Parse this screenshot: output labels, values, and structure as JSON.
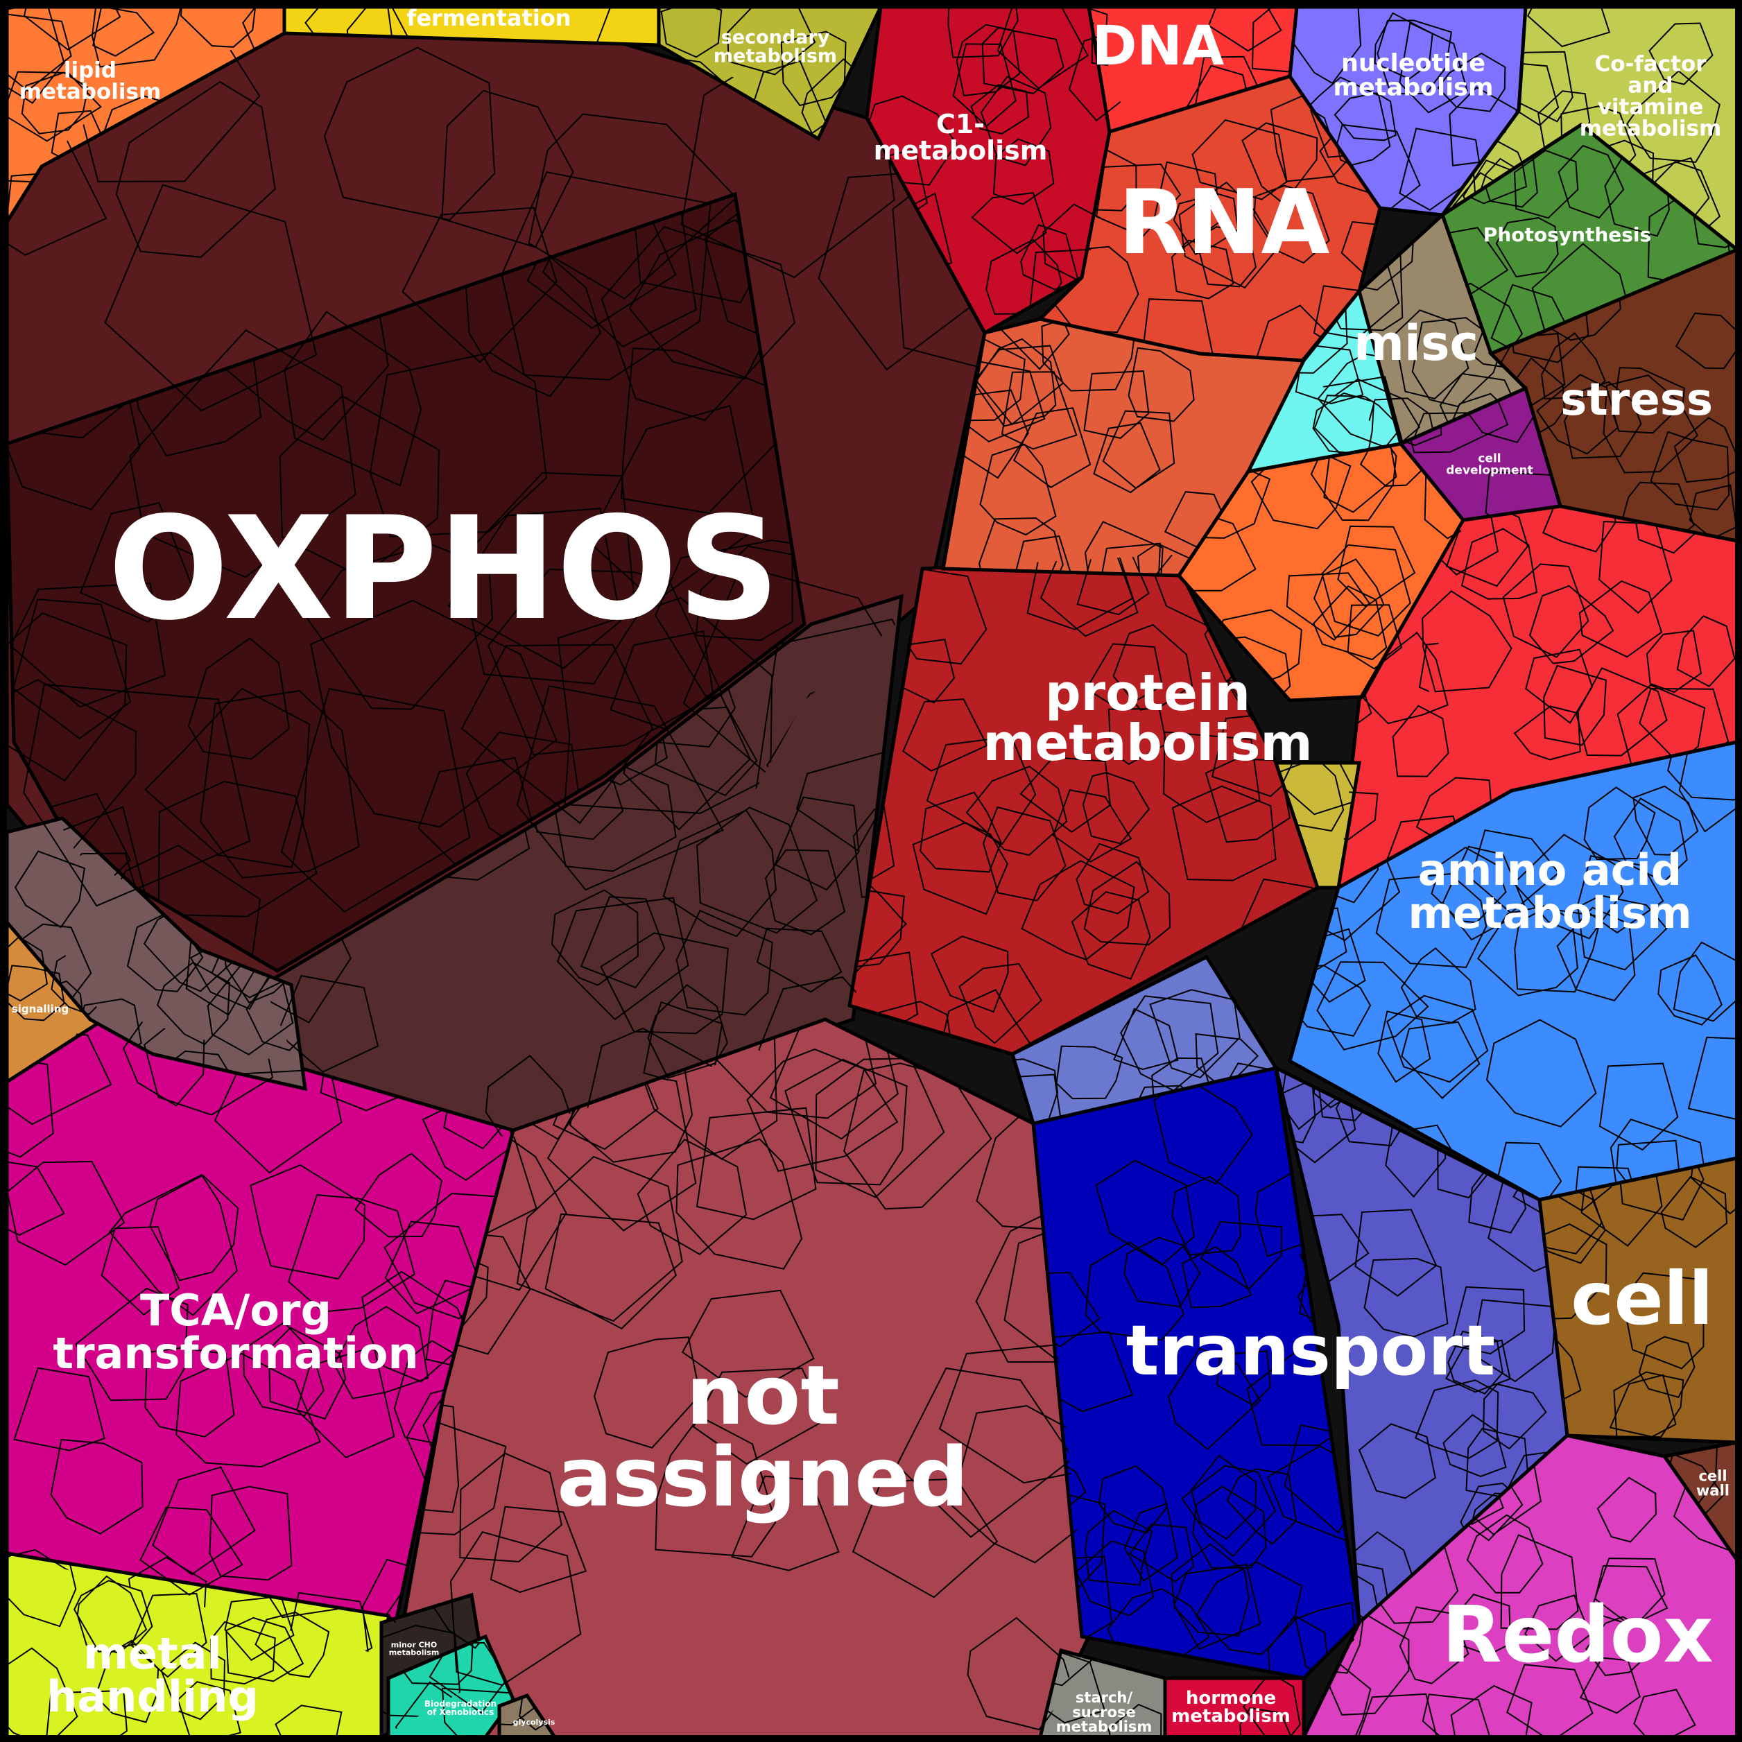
{
  "chart_data": {
    "type": "voronoi-treemap",
    "title": "",
    "categories": [
      {
        "id": "oxphos",
        "label": [
          "OXPHOS"
        ],
        "color": "#3f0e10",
        "size": "huge"
      },
      {
        "id": "oxphos-outer",
        "label": [],
        "color": "#5a1b1f",
        "size": "none"
      },
      {
        "id": "oxphos-lower",
        "label": [],
        "color": "#542c2e",
        "size": "none"
      },
      {
        "id": "not-assigned",
        "label": [
          "not",
          "assigned"
        ],
        "color": "#a84350",
        "size": "xl"
      },
      {
        "id": "transport",
        "label": [
          "transport"
        ],
        "color": "#0000b8",
        "size": "xl"
      },
      {
        "id": "transport-2",
        "label": [],
        "color": "#5858c8",
        "size": "none"
      },
      {
        "id": "protein-metabolism",
        "label": [
          "protein",
          "metabolism"
        ],
        "color": "#b81f22",
        "size": "l"
      },
      {
        "id": "amino-acid-metabolism",
        "label": [
          "amino acid",
          "metabolism"
        ],
        "color": "#3d8cff",
        "size": "l"
      },
      {
        "id": "tca",
        "label": [
          "TCA/org",
          "transformation"
        ],
        "color": "#d3008a",
        "size": "l"
      },
      {
        "id": "rna",
        "label": [
          "RNA"
        ],
        "color": "#e54831",
        "size": "xl"
      },
      {
        "id": "dna",
        "label": [
          "DNA"
        ],
        "color": "#fc3434",
        "size": "l"
      },
      {
        "id": "redox",
        "label": [
          "Redox"
        ],
        "color": "#dc3fc0",
        "size": "xl"
      },
      {
        "id": "cell",
        "label": [
          "cell"
        ],
        "color": "#97631f",
        "size": "xl"
      },
      {
        "id": "stress",
        "label": [
          "stress"
        ],
        "color": "#73341d",
        "size": "l"
      },
      {
        "id": "misc",
        "label": [
          "misc"
        ],
        "color": "#9a886a",
        "size": "l"
      },
      {
        "id": "metal-handling",
        "label": [
          "metal",
          "handling"
        ],
        "color": "#d8f222",
        "size": "l"
      },
      {
        "id": "c1-metabolism",
        "label": [
          "C1-",
          "metabolism"
        ],
        "color": "#c80c28",
        "size": "m"
      },
      {
        "id": "nucleotide-metabolism",
        "label": [
          "nucleotide",
          "metabolism"
        ],
        "color": "#7d73ff",
        "size": "m"
      },
      {
        "id": "cofactor-vitamine",
        "label": [
          "Co-factor",
          "and",
          "vitamine",
          "metabolism"
        ],
        "color": "#c1cd52",
        "size": "m"
      },
      {
        "id": "photosynthesis",
        "label": [
          "Photosynthesis"
        ],
        "color": "#4b9137",
        "size": "s"
      },
      {
        "id": "lipid-metabolism",
        "label": [
          "lipid",
          "metabolism"
        ],
        "color": "#ff7a35",
        "size": "m"
      },
      {
        "id": "fermentation",
        "label": [
          "fermentation"
        ],
        "color": "#f2d414",
        "size": "m"
      },
      {
        "id": "secondary-metabolism",
        "label": [
          "secondary",
          "metabolism"
        ],
        "color": "#b9b834",
        "size": "s"
      },
      {
        "id": "hormone-metabolism",
        "label": [
          "hormone",
          "metabolism"
        ],
        "color": "#d80a3c",
        "size": "s"
      },
      {
        "id": "starch-sucrose",
        "label": [
          "starch/",
          "sucrose",
          "metabolism"
        ],
        "color": "#8a8a82",
        "size": "s"
      },
      {
        "id": "cell-wall",
        "label": [
          "cell",
          "wall"
        ],
        "color": "#7c3a2b",
        "size": "s"
      },
      {
        "id": "cell-development",
        "label": [
          "cell",
          "development"
        ],
        "color": "#8f1b8e",
        "size": "xs"
      },
      {
        "id": "signalling",
        "label": [
          "signalling"
        ],
        "color": "#d48c3c",
        "size": "xs"
      },
      {
        "id": "minor-cho",
        "label": [
          "minor CHO",
          "metabolism"
        ],
        "color": "#2e2523",
        "size": "xxs"
      },
      {
        "id": "biodegradation",
        "label": [
          "Biodegradation",
          "of Xenobiotics"
        ],
        "color": "#1fd6ac",
        "size": "xxs"
      },
      {
        "id": "glycolysis",
        "label": [
          "glycolysis"
        ],
        "color": "#8c7a62",
        "size": "xxs"
      },
      {
        "id": "orange-unlabeled",
        "label": [],
        "color": "#ff6e2c",
        "size": "none"
      },
      {
        "id": "salmon-unlabeled",
        "label": [],
        "color": "#e35d3b",
        "size": "none"
      },
      {
        "id": "red-unlabeled",
        "label": [],
        "color": "#f52e37",
        "size": "none"
      },
      {
        "id": "cyan-unlabeled",
        "label": [],
        "color": "#6ff5f0",
        "size": "none"
      },
      {
        "id": "gray-unlabeled",
        "label": [],
        "color": "#75585a",
        "size": "none"
      },
      {
        "id": "mustard-unlabeled",
        "label": [],
        "color": "#cbb93a",
        "size": "none"
      },
      {
        "id": "periwinkle-unlabeled",
        "label": [],
        "color": "#6a79cf",
        "size": "none"
      }
    ]
  }
}
